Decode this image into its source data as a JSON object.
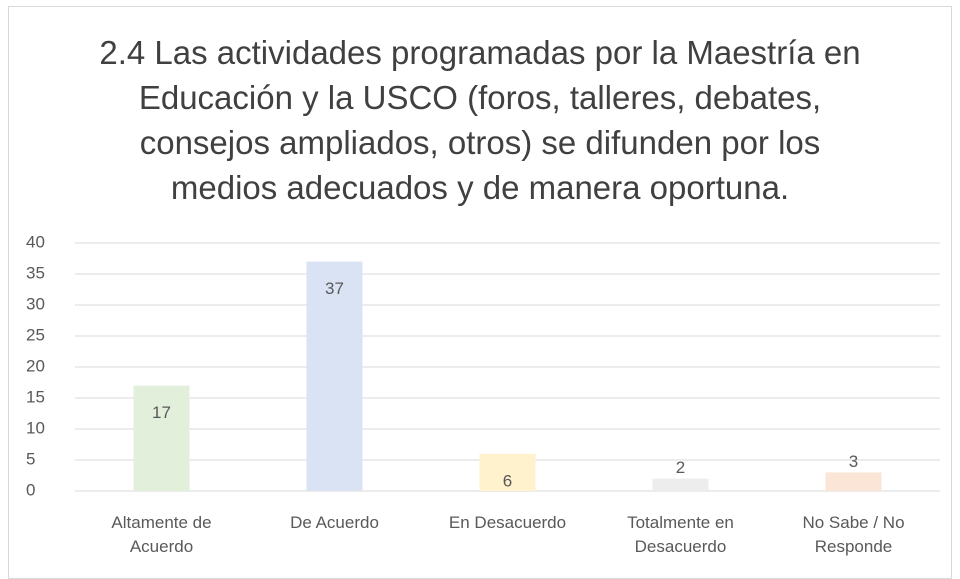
{
  "chart_data": {
    "type": "bar",
    "title": "2.4 Las actividades programadas por la Maestría en Educación y la USCO (foros, talleres, debates, consejos ampliados, otros) se difunden por los medios adecuados y de manera oportuna.",
    "categories": [
      "Altamente de Acuerdo",
      "De Acuerdo",
      "En Desacuerdo",
      "Totalmente en Desacuerdo",
      "No Sabe / No Responde"
    ],
    "values": [
      17,
      37,
      6,
      2,
      3
    ],
    "colors": [
      "#e2efda",
      "#dae3f3",
      "#fff2cc",
      "#ededed",
      "#fbe5d6"
    ],
    "ylim": [
      0,
      40
    ],
    "yticks": [
      0,
      5,
      10,
      15,
      20,
      25,
      30,
      35,
      40
    ],
    "grid": true
  }
}
